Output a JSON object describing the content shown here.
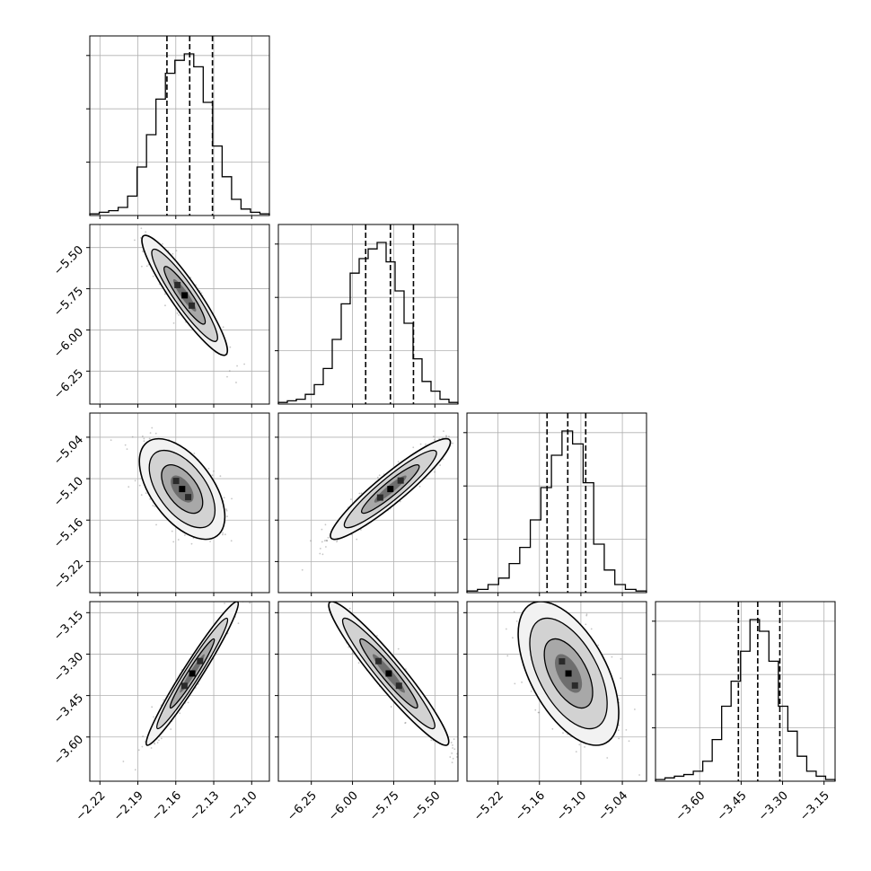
{
  "chart_data": {
    "type": "corner",
    "grid": true,
    "parameters": [
      {
        "index": 0,
        "range": [
          -2.228,
          -2.086
        ],
        "ticks": [
          -2.22,
          -2.19,
          -2.16,
          -2.13,
          -2.1
        ],
        "tick_labels": [
          "−2.22",
          "−2.19",
          "−2.16",
          "−2.13",
          "−2.10"
        ],
        "quantiles": [
          -2.167,
          -2.149,
          -2.131
        ],
        "histogram": [
          1,
          2,
          3,
          5,
          12,
          30,
          50,
          72,
          88,
          96,
          100,
          92,
          70,
          43,
          24,
          10,
          4,
          2,
          1
        ]
      },
      {
        "index": 1,
        "range": [
          -6.45,
          -5.36
        ],
        "ticks": [
          -6.25,
          -6.0,
          -5.75,
          -5.5
        ],
        "tick_labels": [
          "−6.25",
          "−6.00",
          "−5.75",
          "−5.50"
        ],
        "quantiles": [
          -5.92,
          -5.77,
          -5.63
        ],
        "histogram": [
          1,
          2,
          3,
          6,
          12,
          22,
          40,
          62,
          81,
          90,
          96,
          100,
          88,
          70,
          50,
          28,
          14,
          8,
          3,
          1
        ]
      },
      {
        "index": 2,
        "range": [
          -5.265,
          -5.005
        ],
        "ticks": [
          -5.22,
          -5.16,
          -5.1,
          -5.04
        ],
        "tick_labels": [
          "−5.22",
          "−5.16",
          "−5.10",
          "−5.04"
        ],
        "quantiles": [
          -5.149,
          -5.119,
          -5.093
        ],
        "histogram": [
          1,
          2,
          5,
          9,
          18,
          28,
          45,
          65,
          85,
          100,
          92,
          68,
          30,
          14,
          5,
          2,
          1
        ]
      },
      {
        "index": 3,
        "range": [
          -3.76,
          -3.11
        ],
        "ticks": [
          -3.6,
          -3.45,
          -3.3,
          -3.15
        ],
        "tick_labels": [
          "−3.60",
          "−3.45",
          "−3.30",
          "−3.15"
        ],
        "quantiles": [
          -3.46,
          -3.39,
          -3.31
        ],
        "histogram": [
          1,
          2,
          3,
          4,
          6,
          12,
          25,
          45,
          60,
          78,
          97,
          90,
          72,
          45,
          30,
          15,
          6,
          3,
          1
        ]
      }
    ],
    "pairs": [
      {
        "row": 1,
        "col": 0,
        "center": [
          -2.153,
          -5.79
        ],
        "sd": [
          0.013,
          0.14
        ],
        "corr": -0.92
      },
      {
        "row": 2,
        "col": 0,
        "center": [
          -2.155,
          -5.115
        ],
        "sd": [
          0.013,
          0.028
        ],
        "corr": -0.55
      },
      {
        "row": 2,
        "col": 1,
        "center": [
          -5.77,
          -5.115
        ],
        "sd": [
          0.14,
          0.028
        ],
        "corr": 0.93
      },
      {
        "row": 3,
        "col": 0,
        "center": [
          -2.147,
          -3.37
        ],
        "sd": [
          0.014,
          0.1
        ],
        "corr": 0.97
      },
      {
        "row": 3,
        "col": 1,
        "center": [
          -5.78,
          -3.37
        ],
        "sd": [
          0.14,
          0.1
        ],
        "corr": -0.95
      },
      {
        "row": 3,
        "col": 2,
        "center": [
          -5.118,
          -3.37
        ],
        "sd": [
          0.028,
          0.1
        ],
        "corr": -0.55
      }
    ]
  }
}
